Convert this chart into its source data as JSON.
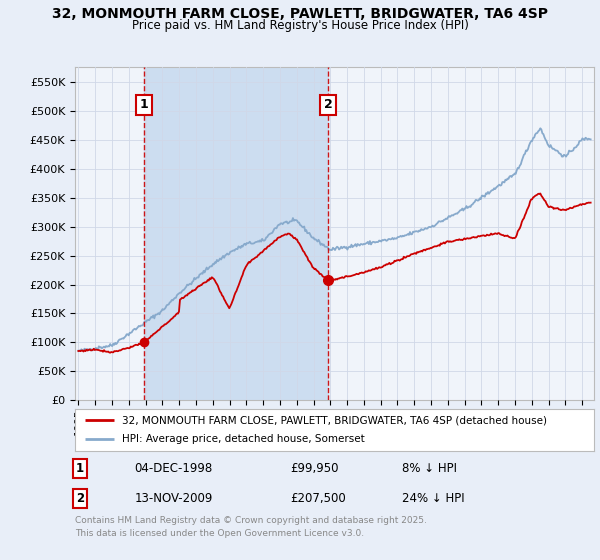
{
  "title_line1": "32, MONMOUTH FARM CLOSE, PAWLETT, BRIDGWATER, TA6 4SP",
  "title_line2": "Price paid vs. HM Land Registry's House Price Index (HPI)",
  "ylabel_ticks": [
    "£0",
    "£50K",
    "£100K",
    "£150K",
    "£200K",
    "£250K",
    "£300K",
    "£350K",
    "£400K",
    "£450K",
    "£500K",
    "£550K"
  ],
  "ytick_values": [
    0,
    50000,
    100000,
    150000,
    200000,
    250000,
    300000,
    350000,
    400000,
    450000,
    500000,
    550000
  ],
  "ylim": [
    0,
    575000
  ],
  "xlim_start": 1994.8,
  "xlim_end": 2025.7,
  "marker1_x": 1998.92,
  "marker1_y": 99950,
  "marker1_label": "1",
  "marker1_date": "04-DEC-1998",
  "marker1_price": "£99,950",
  "marker1_hpi": "8% ↓ HPI",
  "marker2_x": 2009.87,
  "marker2_y": 207500,
  "marker2_label": "2",
  "marker2_date": "13-NOV-2009",
  "marker2_price": "£207,500",
  "marker2_hpi": "24% ↓ HPI",
  "legend_label_red": "32, MONMOUTH FARM CLOSE, PAWLETT, BRIDGWATER, TA6 4SP (detached house)",
  "legend_label_blue": "HPI: Average price, detached house, Somerset",
  "footnote": "Contains HM Land Registry data © Crown copyright and database right 2025.\nThis data is licensed under the Open Government Licence v3.0.",
  "red_color": "#cc0000",
  "blue_color": "#88aacc",
  "shade_color": "#ccddf0",
  "marker_box_color": "#cc0000",
  "vline_color": "#cc0000",
  "background_color": "#e8eef8",
  "plot_bg": "#f0f4fa",
  "grid_color": "#d0d8e8",
  "title_color": "#000000",
  "footnote_color": "#888888"
}
